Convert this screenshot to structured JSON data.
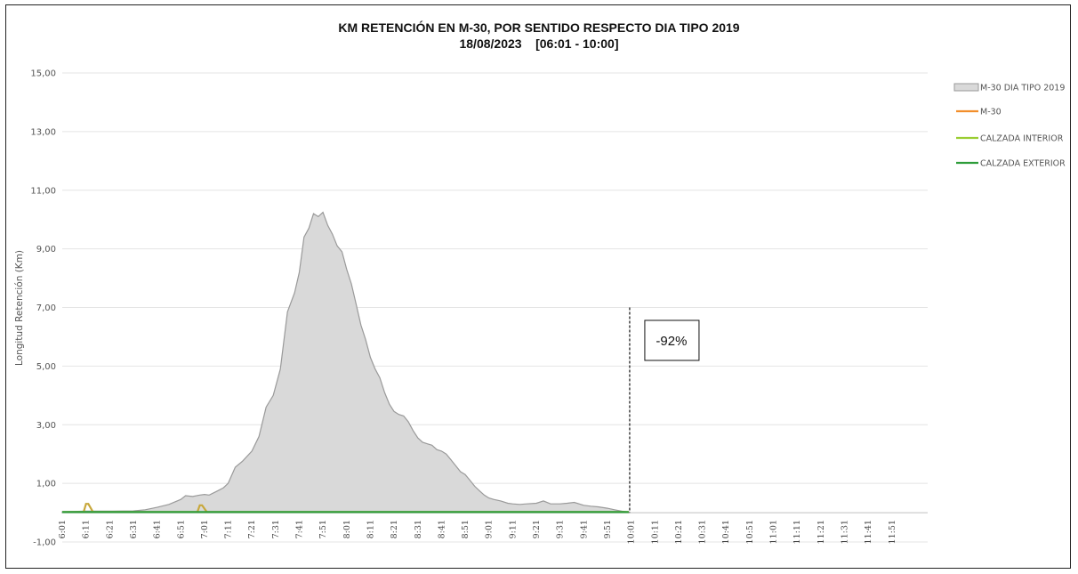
{
  "chart_data": {
    "type": "area",
    "title": "KM RETENCIÓN EN M-30, POR SENTIDO RESPECTO DIA TIPO 2019",
    "subtitle": "18/08/2023    [06:01 - 10:00]",
    "ylabel": "Longitud Retención (Km)",
    "xlabel": "",
    "ylim": [
      -1,
      15
    ],
    "yticks": [
      "-1,00",
      "1,00",
      "3,00",
      "5,00",
      "7,00",
      "9,00",
      "11,00",
      "13,00",
      "15,00"
    ],
    "ytick_values": [
      -1,
      1,
      3,
      5,
      7,
      9,
      11,
      13,
      15
    ],
    "xticks": [
      "6:01",
      "6:11",
      "6:21",
      "6:31",
      "6:41",
      "6:51",
      "7:01",
      "7:11",
      "7:21",
      "7:31",
      "7:41",
      "7:51",
      "8:01",
      "8:11",
      "8:21",
      "8:31",
      "8:41",
      "8:51",
      "9:01",
      "9:11",
      "9:21",
      "9:31",
      "9:41",
      "9:51",
      "10:01",
      "10:11",
      "10:21",
      "10:31",
      "10:41",
      "10:51",
      "11:01",
      "11:11",
      "11:21",
      "11:31",
      "11:41",
      "11:51"
    ],
    "grid": true,
    "legend_position": "right",
    "series": [
      {
        "name": "M-30 DIA TIPO 2019",
        "kind": "area",
        "color": "#d9d9d9",
        "x": [
          "6:01",
          "6:11",
          "6:21",
          "6:31",
          "6:36",
          "6:41",
          "6:46",
          "6:51",
          "6:53",
          "6:56",
          "6:59",
          "7:01",
          "7:03",
          "7:06",
          "7:09",
          "7:11",
          "7:14",
          "7:17",
          "7:21",
          "7:24",
          "7:27",
          "7:30",
          "7:33",
          "7:36",
          "7:39",
          "7:41",
          "7:43",
          "7:45",
          "7:47",
          "7:49",
          "7:51",
          "7:53",
          "7:55",
          "7:57",
          "7:59",
          "8:01",
          "8:03",
          "8:05",
          "8:07",
          "8:09",
          "8:11",
          "8:13",
          "8:15",
          "8:17",
          "8:19",
          "8:21",
          "8:23",
          "8:25",
          "8:27",
          "8:29",
          "8:31",
          "8:33",
          "8:35",
          "8:37",
          "8:39",
          "8:41",
          "8:43",
          "8:45",
          "8:47",
          "8:49",
          "8:51",
          "8:53",
          "8:55",
          "8:57",
          "8:59",
          "9:01",
          "9:03",
          "9:06",
          "9:09",
          "9:11",
          "9:14",
          "9:17",
          "9:21",
          "9:24",
          "9:27",
          "9:31",
          "9:34",
          "9:37",
          "9:41",
          "9:44",
          "9:47",
          "9:51",
          "9:54",
          "9:57",
          "10:00"
        ],
        "values": [
          0.03,
          0.05,
          0.05,
          0.06,
          0.1,
          0.18,
          0.28,
          0.45,
          0.58,
          0.55,
          0.6,
          0.62,
          0.6,
          0.72,
          0.85,
          1.0,
          1.55,
          1.75,
          2.1,
          2.6,
          3.6,
          4.0,
          4.9,
          6.85,
          7.5,
          8.2,
          9.4,
          9.7,
          10.2,
          10.1,
          10.25,
          9.8,
          9.5,
          9.1,
          8.9,
          8.3,
          7.8,
          7.1,
          6.4,
          5.9,
          5.3,
          4.9,
          4.6,
          4.1,
          3.7,
          3.45,
          3.35,
          3.3,
          3.1,
          2.8,
          2.55,
          2.4,
          2.35,
          2.3,
          2.15,
          2.1,
          2.0,
          1.8,
          1.6,
          1.4,
          1.3,
          1.1,
          0.9,
          0.75,
          0.6,
          0.5,
          0.45,
          0.4,
          0.32,
          0.3,
          0.28,
          0.3,
          0.32,
          0.4,
          0.3,
          0.3,
          0.32,
          0.35,
          0.25,
          0.22,
          0.2,
          0.15,
          0.1,
          0.05,
          0.02
        ]
      },
      {
        "name": "M-30",
        "kind": "line",
        "color": "#f28e2b",
        "x": [
          "6:01",
          "6:11",
          "6:21",
          "6:31",
          "6:41",
          "6:51",
          "7:01",
          "7:11",
          "7:21",
          "7:31",
          "7:41",
          "7:51",
          "8:01",
          "8:11",
          "8:21",
          "8:31",
          "8:41",
          "8:51",
          "9:01",
          "9:11",
          "9:21",
          "9:31",
          "9:41",
          "9:51",
          "10:00"
        ],
        "values": [
          0.02,
          0.02,
          0.02,
          0.02,
          0.02,
          0.02,
          0.02,
          0.02,
          0.02,
          0.02,
          0.02,
          0.02,
          0.02,
          0.02,
          0.02,
          0.02,
          0.02,
          0.02,
          0.02,
          0.02,
          0.02,
          0.02,
          0.02,
          0.02,
          0.02
        ]
      },
      {
        "name": "CALZADA INTERIOR",
        "kind": "line",
        "color": "#9acd32",
        "x": [
          "6:01",
          "6:10",
          "6:11",
          "6:12",
          "6:14",
          "6:21",
          "6:31",
          "6:41",
          "6:51",
          "6:58",
          "6:59",
          "7:00",
          "7:02",
          "7:11",
          "7:21",
          "7:31",
          "7:41",
          "7:51",
          "8:01",
          "8:11",
          "8:21",
          "8:31",
          "8:41",
          "8:51",
          "9:01",
          "9:11",
          "9:21",
          "9:31",
          "9:41",
          "9:51",
          "10:00"
        ],
        "values": [
          0.02,
          0.02,
          0.3,
          0.3,
          0.02,
          0.02,
          0.02,
          0.02,
          0.02,
          0.02,
          0.25,
          0.25,
          0.02,
          0.02,
          0.02,
          0.02,
          0.02,
          0.02,
          0.02,
          0.02,
          0.02,
          0.02,
          0.02,
          0.02,
          0.02,
          0.02,
          0.02,
          0.02,
          0.02,
          0.02,
          0.02
        ]
      },
      {
        "name": "CALZADA EXTERIOR",
        "kind": "line",
        "color": "#2e9d3a",
        "x": [
          "6:01",
          "6:31",
          "7:01",
          "7:31",
          "8:01",
          "8:31",
          "9:01",
          "9:31",
          "10:00"
        ],
        "values": [
          0.02,
          0.02,
          0.02,
          0.02,
          0.02,
          0.02,
          0.02,
          0.02,
          0.02
        ]
      }
    ],
    "annotations": [
      {
        "text": "-92%",
        "x": "10:00"
      }
    ]
  }
}
